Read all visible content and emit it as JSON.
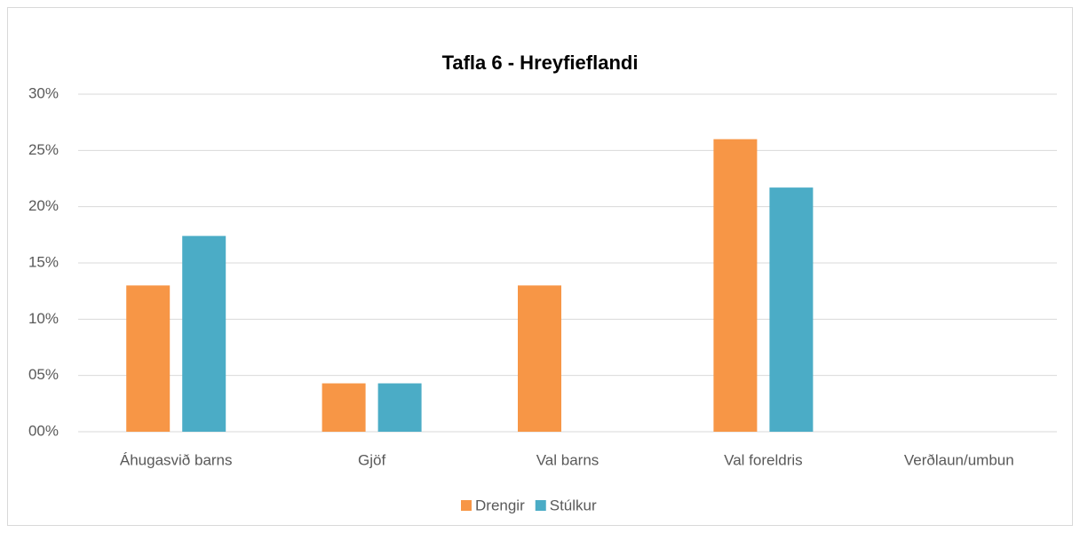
{
  "chart_data": {
    "type": "bar",
    "title": "Tafla 6 - Hreyfieflandi",
    "categories": [
      "Áhugasvið barns",
      "Gjöf",
      "Val barns",
      "Val foreldris",
      "Verðlaun/umbun"
    ],
    "series": [
      {
        "name": "Drengir",
        "color": "#f79646",
        "values": [
          13,
          4.3,
          13,
          26,
          0
        ]
      },
      {
        "name": "Stúlkur",
        "color": "#4bacc6",
        "values": [
          17.4,
          4.3,
          0,
          21.7,
          0
        ]
      }
    ],
    "ylim": [
      0,
      30
    ],
    "yticks": [
      {
        "value": 0,
        "label": "00%"
      },
      {
        "value": 5,
        "label": "05%"
      },
      {
        "value": 10,
        "label": "10%"
      },
      {
        "value": 15,
        "label": "15%"
      },
      {
        "value": 20,
        "label": "20%"
      },
      {
        "value": 25,
        "label": "25%"
      },
      {
        "value": 30,
        "label": "30%"
      }
    ],
    "grid": true,
    "legend": "bottom"
  }
}
